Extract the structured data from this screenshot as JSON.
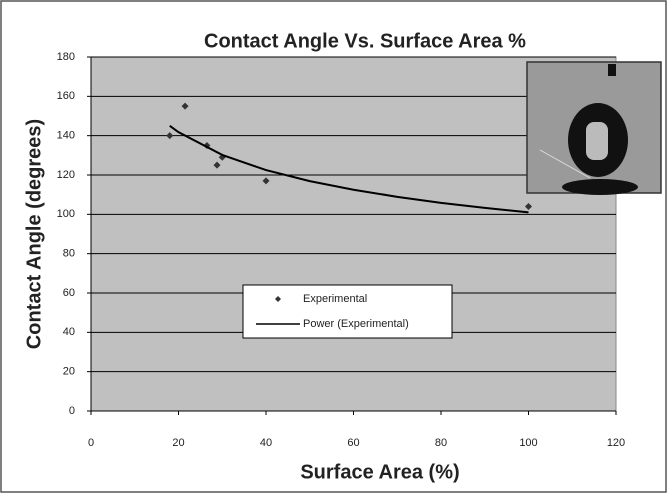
{
  "chart_data": {
    "type": "scatter",
    "title": "Contact Angle Vs.  Surface Area %",
    "x_label": "Surface Area (%)",
    "y_label": "Contact Angle (degrees)",
    "xlim": [
      0,
      120
    ],
    "xticks": [
      0,
      20,
      40,
      60,
      80,
      100,
      120
    ],
    "ylim": [
      0,
      180
    ],
    "yticks": [
      0,
      20,
      40,
      60,
      80,
      100,
      120,
      140,
      160,
      180
    ],
    "grid": true,
    "legend": "lower-center",
    "plot_background": "#c0c0c0",
    "series": [
      {
        "name": "Experimental",
        "type": "scatter",
        "color": "#333333",
        "x": [
          18,
          21.5,
          26.5,
          28.8,
          30,
          40,
          100
        ],
        "values": [
          140,
          155,
          135,
          125,
          129,
          117,
          104
        ]
      },
      {
        "name": "Power (Experimental)",
        "type": "line",
        "color": "#000000",
        "x": [
          18,
          20,
          30,
          40,
          50,
          60,
          70,
          80,
          90,
          100
        ],
        "values": [
          145,
          141.8,
          130.2,
          122.5,
          116.9,
          112.5,
          108.9,
          105.8,
          103.3,
          101
        ]
      }
    ]
  }
}
